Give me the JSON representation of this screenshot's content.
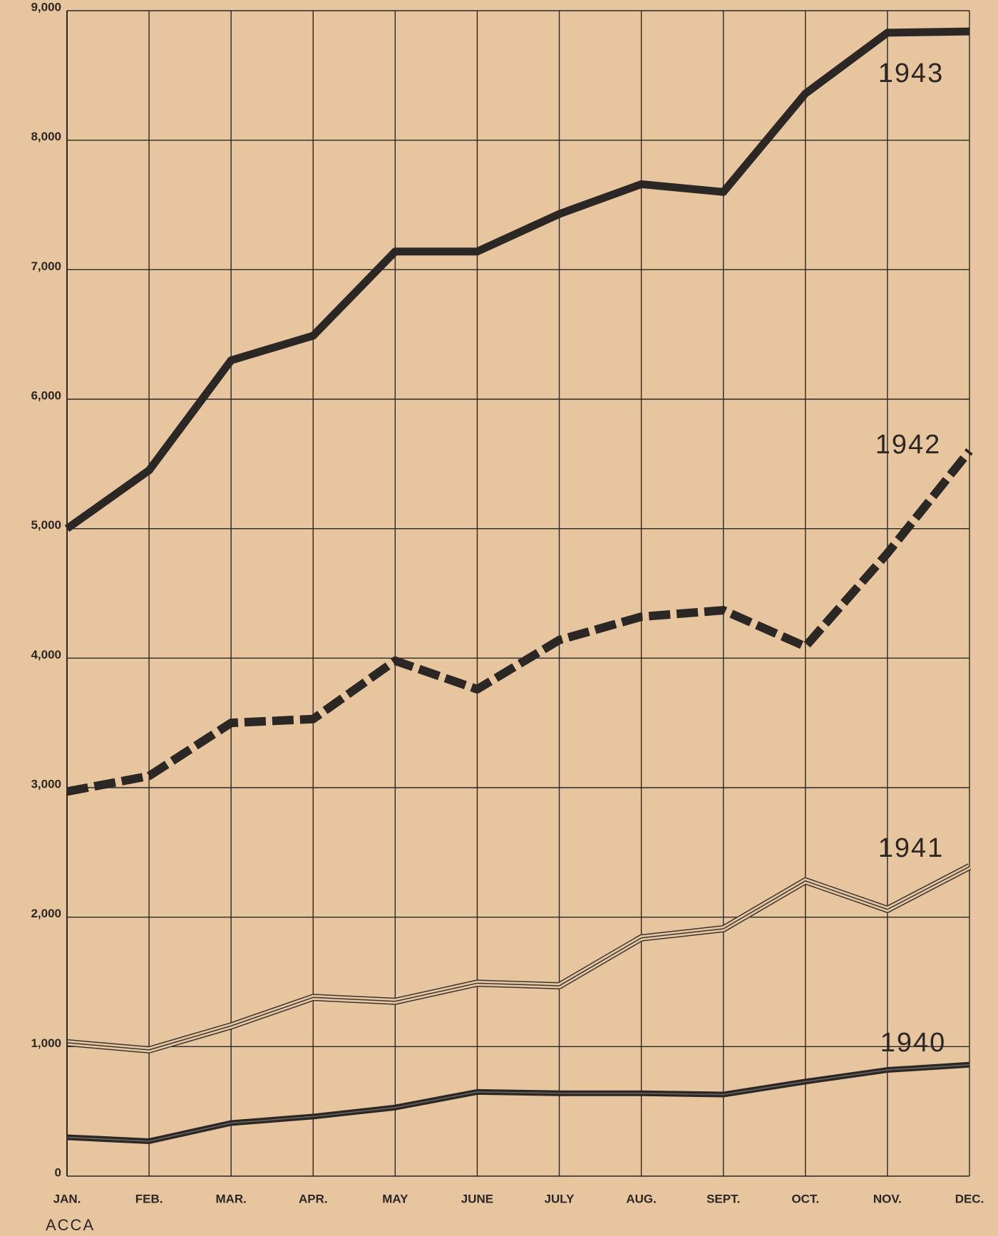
{
  "chart_data": {
    "type": "line",
    "categories": [
      "JAN.",
      "FEB.",
      "MAR.",
      "APR.",
      "MAY",
      "JUNE",
      "JULY",
      "AUG.",
      "SEPT.",
      "OCT.",
      "NOV.",
      "DEC."
    ],
    "series": [
      {
        "name": "1943",
        "color": "#2b2725",
        "style": "solid",
        "values": [
          5000,
          5450,
          6300,
          6490,
          7140,
          7140,
          7430,
          7660,
          7600,
          8360,
          8830,
          8840
        ]
      },
      {
        "name": "1942",
        "color": "#2b2725",
        "style": "dashed",
        "values": [
          2970,
          3090,
          3500,
          3530,
          3980,
          3760,
          4140,
          4320,
          4370,
          4090,
          4810,
          5600
        ]
      },
      {
        "name": "1941",
        "color": "#3a3634",
        "style": "triple",
        "values": [
          1030,
          975,
          1160,
          1380,
          1350,
          1490,
          1470,
          1840,
          1910,
          2280,
          2060,
          2390
        ]
      },
      {
        "name": "1940",
        "color": "#2b2725",
        "style": "double",
        "values": [
          300,
          270,
          410,
          460,
          530,
          650,
          640,
          640,
          630,
          730,
          820,
          860
        ]
      }
    ],
    "ylim": [
      0,
      9000
    ],
    "yticks": [
      0,
      {
        "value": 1000,
        "label": "1,000"
      },
      {
        "value": 2000,
        "label": "2,000"
      },
      {
        "value": 3000,
        "label": "3,000"
      },
      {
        "value": 4000,
        "label": "4,000"
      },
      {
        "value": 5000,
        "label": "5,000"
      },
      {
        "value": 6000,
        "label": "6,000"
      },
      {
        "value": 7000,
        "label": "7,000"
      },
      {
        "value": 8000,
        "label": "8,000"
      },
      {
        "value": 9000,
        "label": "9,000"
      }
    ],
    "grid": true,
    "source": "ACCA"
  }
}
